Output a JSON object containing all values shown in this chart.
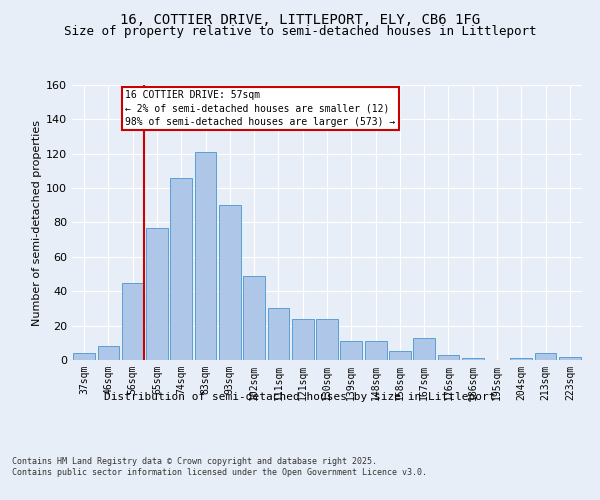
{
  "title_line1": "16, COTTIER DRIVE, LITTLEPORT, ELY, CB6 1FG",
  "title_line2": "Size of property relative to semi-detached houses in Littleport",
  "xlabel": "Distribution of semi-detached houses by size in Littleport",
  "ylabel": "Number of semi-detached properties",
  "categories": [
    "37sqm",
    "46sqm",
    "56sqm",
    "65sqm",
    "74sqm",
    "83sqm",
    "93sqm",
    "102sqm",
    "111sqm",
    "121sqm",
    "130sqm",
    "139sqm",
    "148sqm",
    "158sqm",
    "167sqm",
    "176sqm",
    "186sqm",
    "195sqm",
    "204sqm",
    "213sqm",
    "223sqm"
  ],
  "values": [
    4,
    8,
    45,
    77,
    106,
    121,
    90,
    49,
    30,
    24,
    24,
    11,
    11,
    5,
    13,
    3,
    1,
    0,
    1,
    4,
    2
  ],
  "bar_color": "#aec6e8",
  "bar_edge_color": "#5a9fd4",
  "highlight_index": 2,
  "annotation_text": "16 COTTIER DRIVE: 57sqm\n← 2% of semi-detached houses are smaller (12)\n98% of semi-detached houses are larger (573) →",
  "annotation_box_color": "#ffffff",
  "annotation_box_edge": "#cc0000",
  "vline_color": "#cc0000",
  "ylim": [
    0,
    160
  ],
  "yticks": [
    0,
    20,
    40,
    60,
    80,
    100,
    120,
    140,
    160
  ],
  "bg_color": "#e8eef7",
  "plot_bg_color": "#e8eef7",
  "footer": "Contains HM Land Registry data © Crown copyright and database right 2025.\nContains public sector information licensed under the Open Government Licence v3.0.",
  "title_fontsize": 10,
  "subtitle_fontsize": 9
}
